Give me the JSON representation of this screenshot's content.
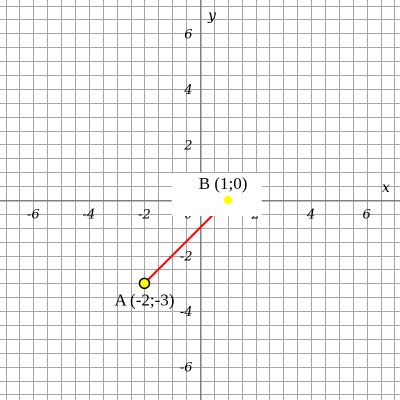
{
  "chart_data": {
    "type": "scatter",
    "xlabel": "x",
    "ylabel": "y",
    "xlim": [
      -7.2,
      7.2
    ],
    "ylim": [
      -7.2,
      7.2
    ],
    "grid": true,
    "grid_step": 0.5,
    "x_ticks": [
      -6,
      -4,
      -2,
      2,
      4,
      6
    ],
    "y_ticks": [
      -6,
      -4,
      -2,
      2,
      4,
      6
    ],
    "origin_label": "0",
    "points": [
      {
        "name": "A",
        "x": -2,
        "y": -3,
        "label": "A (-2;-3)",
        "color": "#ffff00",
        "outline": "#000000"
      },
      {
        "name": "B",
        "x": 1,
        "y": 0,
        "label": "B (1;0)",
        "color": "#ffff00",
        "outline": "#ffffff"
      }
    ],
    "segments": [
      {
        "from": "A",
        "to": "B",
        "color": "#ff0000"
      }
    ]
  }
}
